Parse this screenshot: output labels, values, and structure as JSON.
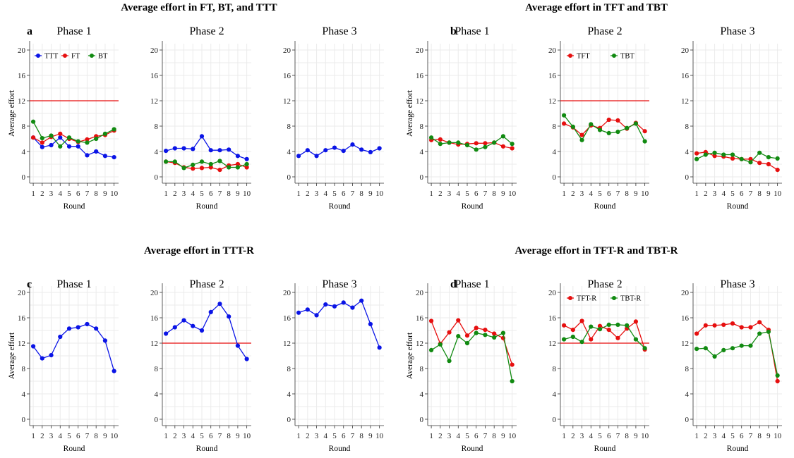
{
  "colors": {
    "TTT": "#0a14e6",
    "FT": "#e60f0f",
    "BT": "#118a11",
    "TFT": "#e60f0f",
    "TBT": "#118a11",
    "TFT-R": "#e60f0f",
    "TBT-R": "#118a11",
    "threshold": "#e60f0f"
  },
  "axis": {
    "ylabel": "Average effort",
    "xlabel": "Round",
    "yticks": [
      0,
      4,
      8,
      12,
      16,
      20
    ],
    "xticks": [
      1,
      2,
      3,
      4,
      5,
      6,
      7,
      8,
      9,
      10
    ],
    "ylim": [
      -1,
      21
    ],
    "xlim": [
      0.6,
      10.5
    ]
  },
  "chart_data": [
    {
      "type": "line",
      "letter": "a",
      "title": "Average effort in FT, BT, and TTT",
      "phases": [
        {
          "phase": "Phase 1",
          "threshold": 12,
          "legend": [
            "TTT",
            "FT",
            "BT"
          ],
          "series": [
            {
              "name": "TTT",
              "values": [
                6.2,
                4.7,
                5.0,
                6.2,
                4.8,
                4.8,
                3.4,
                4.0,
                3.3,
                3.1
              ]
            },
            {
              "name": "FT",
              "values": [
                6.2,
                5.4,
                6.3,
                6.8,
                6.0,
                5.5,
                5.9,
                6.4,
                6.6,
                7.3
              ]
            },
            {
              "name": "BT",
              "values": [
                8.7,
                6.1,
                6.5,
                4.8,
                6.2,
                5.6,
                5.4,
                6.0,
                6.8,
                7.5
              ]
            }
          ]
        },
        {
          "phase": "Phase 2",
          "threshold": null,
          "legend": [],
          "series": [
            {
              "name": "TTT",
              "values": [
                4.1,
                4.5,
                4.5,
                4.4,
                6.4,
                4.2,
                4.2,
                4.3,
                3.3,
                2.8
              ]
            },
            {
              "name": "FT",
              "values": [
                2.4,
                2.2,
                1.5,
                1.3,
                1.4,
                1.5,
                1.1,
                1.8,
                2.0,
                1.5
              ]
            },
            {
              "name": "BT",
              "values": [
                2.4,
                2.4,
                1.4,
                1.9,
                2.4,
                2.0,
                2.5,
                1.5,
                1.5,
                2.0
              ]
            }
          ]
        },
        {
          "phase": "Phase 3",
          "threshold": null,
          "legend": [],
          "series": [
            {
              "name": "TTT",
              "values": [
                3.3,
                4.2,
                3.3,
                4.2,
                4.6,
                4.1,
                5.1,
                4.3,
                3.9,
                4.5
              ]
            }
          ]
        }
      ]
    },
    {
      "type": "line",
      "letter": "b",
      "title": "Average effort in TFT and TBT",
      "phases": [
        {
          "phase": "Phase 1",
          "threshold": null,
          "legend": [],
          "series": [
            {
              "name": "TFT",
              "values": [
                5.8,
                5.9,
                5.4,
                5.1,
                5.2,
                5.3,
                5.3,
                5.4,
                4.8,
                4.5
              ]
            },
            {
              "name": "TBT",
              "values": [
                6.2,
                5.2,
                5.4,
                5.4,
                5.0,
                4.3,
                4.7,
                5.4,
                6.4,
                5.2
              ]
            }
          ]
        },
        {
          "phase": "Phase 2",
          "threshold": 12,
          "legend": [
            "TFT",
            "TBT"
          ],
          "series": [
            {
              "name": "TFT",
              "values": [
                8.4,
                7.8,
                6.6,
                8.1,
                7.7,
                9.0,
                8.9,
                7.6,
                8.5,
                7.2
              ]
            },
            {
              "name": "TBT",
              "values": [
                9.7,
                7.9,
                5.8,
                8.3,
                7.4,
                6.9,
                7.1,
                7.7,
                8.4,
                5.6
              ]
            }
          ]
        },
        {
          "phase": "Phase 3",
          "threshold": null,
          "legend": [],
          "series": [
            {
              "name": "TFT",
              "values": [
                3.7,
                3.9,
                3.3,
                3.2,
                2.9,
                2.8,
                2.8,
                2.2,
                2.0,
                1.1
              ]
            },
            {
              "name": "TBT",
              "values": [
                2.8,
                3.5,
                3.8,
                3.5,
                3.5,
                2.8,
                2.3,
                3.8,
                3.1,
                2.9
              ]
            }
          ]
        }
      ]
    },
    {
      "type": "line",
      "letter": "c",
      "title": "Average effort in TTT-R",
      "phases": [
        {
          "phase": "Phase 1",
          "threshold": null,
          "legend": [],
          "series": [
            {
              "name": "TTT-R",
              "values": [
                11.5,
                9.6,
                10.1,
                13.0,
                14.3,
                14.5,
                15.0,
                14.3,
                12.4,
                7.6
              ]
            }
          ]
        },
        {
          "phase": "Phase 2",
          "threshold": 12,
          "legend": [],
          "series": [
            {
              "name": "TTT-R",
              "values": [
                13.5,
                14.5,
                15.6,
                14.7,
                14.0,
                16.9,
                18.2,
                16.2,
                11.6,
                9.5
              ]
            }
          ]
        },
        {
          "phase": "Phase 3",
          "threshold": null,
          "legend": [],
          "series": [
            {
              "name": "TTT-R",
              "values": [
                16.8,
                17.3,
                16.4,
                18.1,
                17.8,
                18.4,
                17.6,
                18.7,
                15.0,
                11.3
              ]
            }
          ]
        }
      ]
    },
    {
      "type": "line",
      "letter": "d",
      "title": "Average effort in TFT-R and TBT-R",
      "phases": [
        {
          "phase": "Phase 1",
          "threshold": null,
          "legend": [],
          "series": [
            {
              "name": "TFT-R",
              "values": [
                15.5,
                11.9,
                13.7,
                15.6,
                13.2,
                14.4,
                14.1,
                13.5,
                12.8,
                8.6
              ]
            },
            {
              "name": "TBT-R",
              "values": [
                10.9,
                11.8,
                9.2,
                13.1,
                12.0,
                13.6,
                13.3,
                12.9,
                13.6,
                6.0
              ]
            }
          ]
        },
        {
          "phase": "Phase 2",
          "threshold": 12,
          "legend": [
            "TFT-R",
            "TBT-R"
          ],
          "series": [
            {
              "name": "TFT-R",
              "values": [
                14.8,
                14.1,
                15.5,
                12.6,
                14.7,
                14.1,
                12.8,
                14.3,
                15.4,
                11.0
              ]
            },
            {
              "name": "TBT-R",
              "values": [
                12.6,
                13.0,
                12.2,
                14.6,
                14.2,
                14.9,
                14.9,
                14.8,
                12.6,
                11.2
              ]
            }
          ]
        },
        {
          "phase": "Phase 3",
          "threshold": null,
          "legend": [],
          "series": [
            {
              "name": "TFT-R",
              "values": [
                13.5,
                14.8,
                14.8,
                14.9,
                15.1,
                14.5,
                14.5,
                15.3,
                14.1,
                6.0
              ]
            },
            {
              "name": "TBT-R",
              "values": [
                11.1,
                11.2,
                9.9,
                10.9,
                11.2,
                11.6,
                11.6,
                13.5,
                13.8,
                6.9
              ]
            }
          ]
        }
      ]
    }
  ]
}
